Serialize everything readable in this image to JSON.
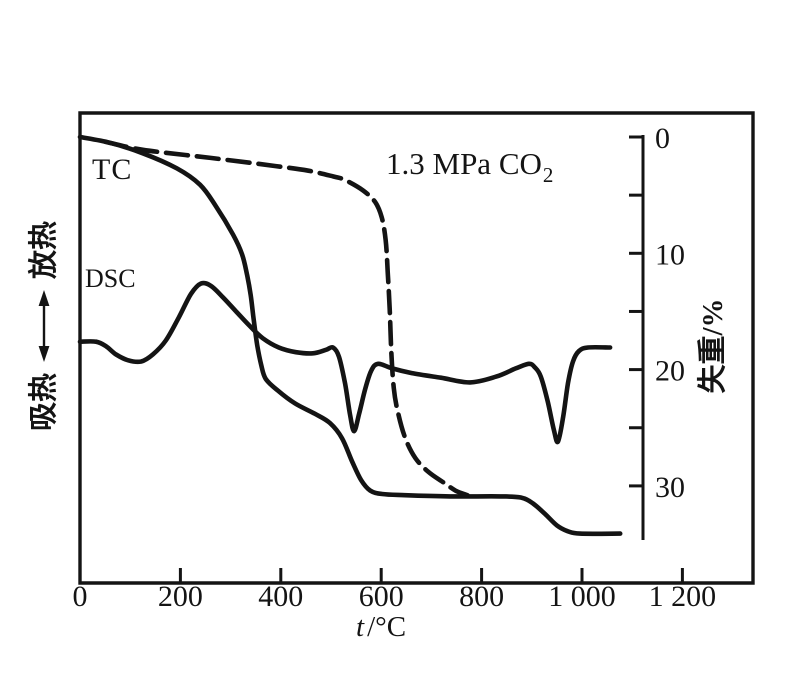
{
  "figure": {
    "labels": {
      "tc": "TC",
      "dsc": "DSC",
      "annotation_main": "1.3 MPa CO",
      "annotation_sub": "2"
    },
    "x_axis_title": {
      "symbol": "t",
      "unit": "/°C"
    },
    "right_axis_title": "失重/%",
    "left_axis_title": {
      "low": "吸热",
      "high": "放热"
    },
    "colors": {
      "ink": "#141414",
      "background": "#ffffff"
    }
  },
  "chart_data": {
    "type": "line",
    "title": "",
    "annotation": "1.3 MPa CO2",
    "x_axis": {
      "label": "t/°C",
      "tick_values": [
        0,
        200,
        400,
        600,
        800,
        1000,
        1200
      ],
      "tick_labels": [
        "0",
        "200",
        "400",
        "600",
        "800",
        "1 000",
        "1 200"
      ],
      "range_C": [
        0,
        1340
      ],
      "grid": false
    },
    "right_y_axis": {
      "label": "失重/%",
      "major_tick_values": [
        0,
        10,
        20,
        30
      ],
      "minor_tick_values": [
        5,
        15,
        25
      ],
      "range_percent": [
        0,
        34.7
      ],
      "orientation": "weight loss increases downward"
    },
    "left_y_axis": {
      "label_low": "吸热",
      "label_high": "放热",
      "units": "DSC heat flow, arbitrary units"
    },
    "series": [
      {
        "name": "TC",
        "style": "solid",
        "y_unit": "weight loss %",
        "points": [
          [
            0,
            0
          ],
          [
            60,
            0.5
          ],
          [
            125,
            1.4
          ],
          [
            193,
            2.7
          ],
          [
            239,
            4.1
          ],
          [
            270,
            5.9
          ],
          [
            305,
            8.4
          ],
          [
            323,
            10.1
          ],
          [
            333,
            11.9
          ],
          [
            340,
            13.6
          ],
          [
            346,
            15.7
          ],
          [
            353,
            17.9
          ],
          [
            361,
            19.6
          ],
          [
            370,
            20.8
          ],
          [
            394,
            21.8
          ],
          [
            428,
            22.9
          ],
          [
            468,
            23.8
          ],
          [
            498,
            24.6
          ],
          [
            522,
            25.9
          ],
          [
            542,
            27.9
          ],
          [
            560,
            29.5
          ],
          [
            578,
            30.4
          ],
          [
            602,
            30.7
          ],
          [
            647,
            30.8
          ],
          [
            737,
            30.9
          ],
          [
            837,
            30.9
          ],
          [
            878,
            31.0
          ],
          [
            902,
            31.5
          ],
          [
            926,
            32.4
          ],
          [
            950,
            33.4
          ],
          [
            972,
            33.9
          ],
          [
            996,
            34.1
          ],
          [
            1076,
            34.1
          ]
        ]
      },
      {
        "name": "1.3 MPa CO2 (TG)",
        "style": "dashed",
        "y_unit": "weight loss %",
        "points": [
          [
            50,
            0.4
          ],
          [
            125,
            1.1
          ],
          [
            260,
            1.8
          ],
          [
            390,
            2.5
          ],
          [
            455,
            2.9
          ],
          [
            505,
            3.4
          ],
          [
            528,
            3.7
          ],
          [
            564,
            4.6
          ],
          [
            588,
            5.6
          ],
          [
            601,
            6.9
          ],
          [
            609,
            8.9
          ],
          [
            613,
            11.6
          ],
          [
            617,
            14.8
          ],
          [
            620,
            18.3
          ],
          [
            625,
            21.6
          ],
          [
            634,
            23.8
          ],
          [
            648,
            25.9
          ],
          [
            668,
            27.6
          ],
          [
            694,
            28.8
          ],
          [
            724,
            29.7
          ],
          [
            748,
            30.4
          ],
          [
            772,
            30.8
          ]
        ]
      },
      {
        "name": "DSC",
        "style": "solid",
        "y_unit": "a.u. (plotted on right-axis scale)",
        "points": [
          [
            0,
            17.6
          ],
          [
            32,
            17.6
          ],
          [
            52,
            18.0
          ],
          [
            72,
            18.7
          ],
          [
            96,
            19.2
          ],
          [
            122,
            19.3
          ],
          [
            145,
            18.7
          ],
          [
            171,
            17.5
          ],
          [
            197,
            15.5
          ],
          [
            221,
            13.5
          ],
          [
            241,
            12.6
          ],
          [
            261,
            12.8
          ],
          [
            285,
            13.8
          ],
          [
            311,
            15.0
          ],
          [
            337,
            16.2
          ],
          [
            364,
            17.3
          ],
          [
            396,
            18.1
          ],
          [
            430,
            18.5
          ],
          [
            464,
            18.6
          ],
          [
            490,
            18.3
          ],
          [
            504,
            18.1
          ],
          [
            516,
            18.9
          ],
          [
            528,
            21.2
          ],
          [
            538,
            23.9
          ],
          [
            546,
            25.3
          ],
          [
            556,
            23.8
          ],
          [
            568,
            21.7
          ],
          [
            580,
            20.1
          ],
          [
            594,
            19.5
          ],
          [
            622,
            19.9
          ],
          [
            661,
            20.3
          ],
          [
            719,
            20.7
          ],
          [
            777,
            21.1
          ],
          [
            829,
            20.6
          ],
          [
            868,
            19.9
          ],
          [
            894,
            19.5
          ],
          [
            906,
            19.8
          ],
          [
            918,
            20.6
          ],
          [
            932,
            22.8
          ],
          [
            944,
            25.2
          ],
          [
            952,
            26.2
          ],
          [
            962,
            24.2
          ],
          [
            972,
            21.2
          ],
          [
            982,
            19.3
          ],
          [
            994,
            18.4
          ],
          [
            1012,
            18.1
          ],
          [
            1056,
            18.1
          ]
        ]
      }
    ]
  }
}
